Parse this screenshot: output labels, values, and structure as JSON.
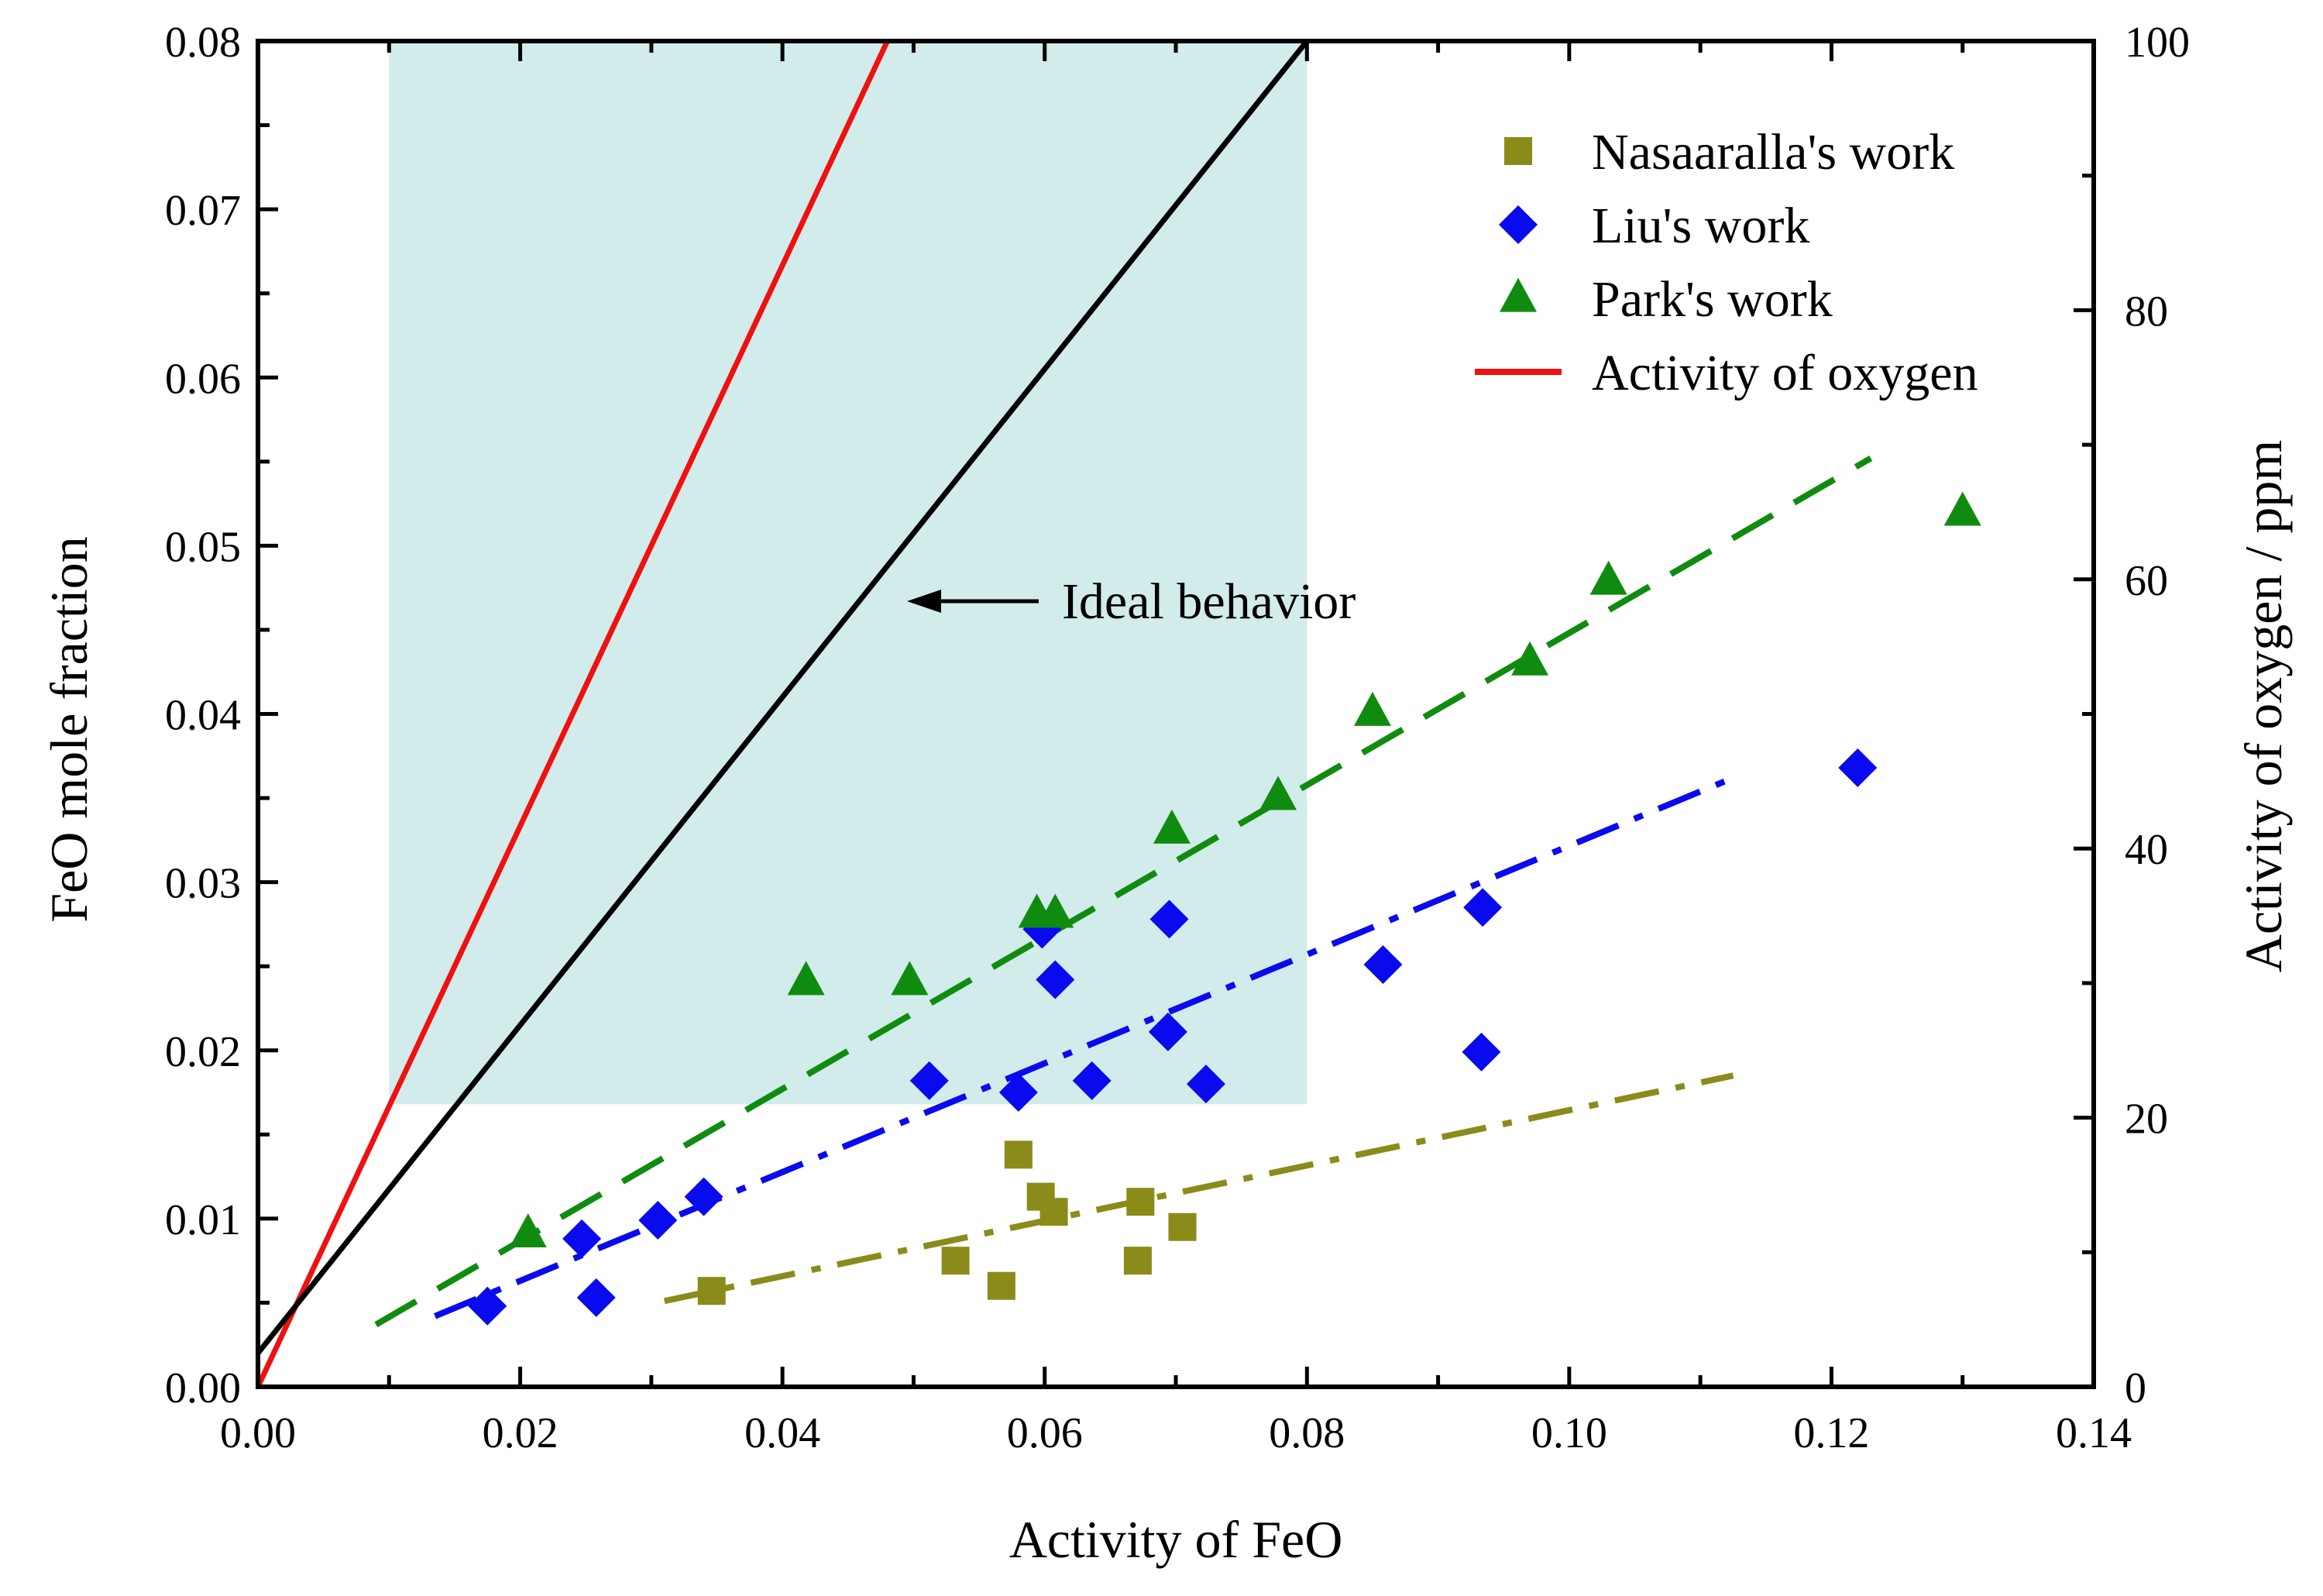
{
  "chart_data": {
    "type": "scatter",
    "title": "",
    "xlabel": "Activity of FeO",
    "ylabel": "FeO mole fraction",
    "y2label": "Activity of oxygen / ppm",
    "xlim": [
      0,
      0.14
    ],
    "ylim": [
      0,
      0.08
    ],
    "y2lim": [
      0,
      100
    ],
    "x_ticks": [
      "0.00",
      "0.02",
      "0.04",
      "0.06",
      "0.08",
      "0.10",
      "0.12",
      "0.14"
    ],
    "y_ticks": [
      "0.00",
      "0.01",
      "0.02",
      "0.03",
      "0.04",
      "0.05",
      "0.06",
      "0.07",
      "0.08"
    ],
    "y2_ticks": [
      "0",
      "20",
      "40",
      "60",
      "80",
      "100"
    ],
    "shaded_region": {
      "x": [
        0.01,
        0.08
      ],
      "y": [
        0.0168,
        0.08
      ],
      "color": "#d2ebeb"
    },
    "series": [
      {
        "name": "Nasaaralla's work",
        "marker": "square",
        "color": "#8b8b1a",
        "points": [
          [
            0.0346,
            0.0057
          ],
          [
            0.0532,
            0.0075
          ],
          [
            0.0567,
            0.006
          ],
          [
            0.058,
            0.0138
          ],
          [
            0.0597,
            0.0113
          ],
          [
            0.0607,
            0.0104
          ],
          [
            0.0671,
            0.0075
          ],
          [
            0.0673,
            0.011
          ],
          [
            0.0705,
            0.0095
          ]
        ]
      },
      {
        "name": "Liu's work",
        "marker": "diamond",
        "color": "#0a0aee",
        "points": [
          [
            0.0175,
            0.0048
          ],
          [
            0.0247,
            0.0088
          ],
          [
            0.0258,
            0.0053
          ],
          [
            0.0305,
            0.0099
          ],
          [
            0.034,
            0.0113
          ],
          [
            0.0512,
            0.0182
          ],
          [
            0.058,
            0.0175
          ],
          [
            0.0598,
            0.0272
          ],
          [
            0.0608,
            0.0242
          ],
          [
            0.0636,
            0.0182
          ],
          [
            0.0694,
            0.0211
          ],
          [
            0.0695,
            0.0278
          ],
          [
            0.0723,
            0.018
          ],
          [
            0.0858,
            0.0251
          ],
          [
            0.0933,
            0.0199
          ],
          [
            0.0934,
            0.0285
          ],
          [
            0.122,
            0.0368
          ]
        ]
      },
      {
        "name": "Park's work",
        "marker": "triangle",
        "color": "#0f8c0f",
        "points": [
          [
            0.0206,
            0.0091
          ],
          [
            0.0418,
            0.0241
          ],
          [
            0.0497,
            0.0241
          ],
          [
            0.0594,
            0.0281
          ],
          [
            0.0608,
            0.0281
          ],
          [
            0.0697,
            0.0331
          ],
          [
            0.0778,
            0.0351
          ],
          [
            0.085,
            0.0401
          ],
          [
            0.097,
            0.0431
          ],
          [
            0.103,
            0.0479
          ],
          [
            0.13,
            0.052
          ]
        ]
      }
    ],
    "lines": [
      {
        "name": "Activity of oxygen",
        "style": "solid",
        "color": "#ee1111",
        "points": [
          [
            0,
            0
          ],
          [
            0.048,
            0.08
          ]
        ]
      },
      {
        "name": "Ideal behavior",
        "style": "solid",
        "color": "#000000",
        "points": [
          [
            0,
            0.002
          ],
          [
            0.08,
            0.08
          ]
        ]
      },
      {
        "name": "Park's work fit",
        "style": "dash",
        "color": "#0f8c0f",
        "points": [
          [
            0.009,
            0.0037
          ],
          [
            0.123,
            0.0552
          ]
        ]
      },
      {
        "name": "Liu's work fit",
        "style": "dashdot",
        "color": "#0a0aee",
        "points": [
          [
            0.0135,
            0.0042
          ],
          [
            0.1125,
            0.0362
          ]
        ]
      },
      {
        "name": "Nasaaralla's work fit",
        "style": "dashdot",
        "color": "#8b8b1a",
        "points": [
          [
            0.031,
            0.0051
          ],
          [
            0.1125,
            0.0185
          ]
        ]
      }
    ],
    "legend": [
      {
        "label": "Nasaaralla's work",
        "marker": "square",
        "color": "#8b8b1a"
      },
      {
        "label": "Liu's work",
        "marker": "diamond",
        "color": "#0a0aee"
      },
      {
        "label": "Park's work",
        "marker": "triangle",
        "color": "#0f8c0f"
      },
      {
        "label": "Activity of oxygen",
        "marker": "line",
        "color": "#ee1111"
      }
    ],
    "legend_position": "top-right",
    "annotations": [
      {
        "text": "Ideal behavior",
        "arrow_tip": [
          0.0495,
          0.0467
        ]
      }
    ],
    "grid": false
  }
}
